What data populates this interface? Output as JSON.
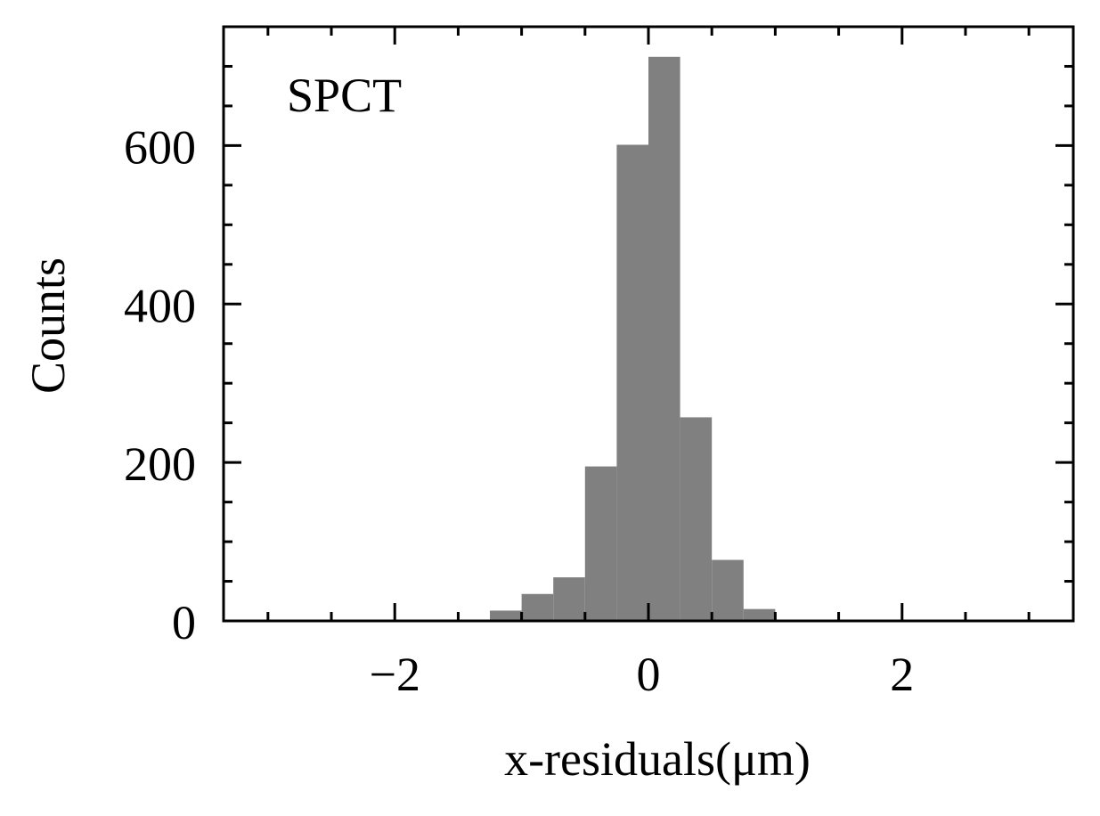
{
  "chart_data": {
    "type": "bar",
    "title": "",
    "annotation": "SPCT",
    "xlabel": "x-residuals(μm)",
    "ylabel": "Counts",
    "xlim": [
      -3.35,
      3.35
    ],
    "ylim": [
      0,
      750
    ],
    "xticks": [
      -2,
      0,
      2
    ],
    "xtick_labels": [
      "−2",
      "0",
      "2"
    ],
    "yticks": [
      0,
      200,
      400,
      600
    ],
    "ytick_labels": [
      "0",
      "200",
      "400",
      "600"
    ],
    "x_minor_step": 0.5,
    "y_minor_step": 50,
    "bin_width": 0.25,
    "bars": [
      {
        "x0": -2.25,
        "x1": -2.0,
        "count": 1
      },
      {
        "x0": -1.25,
        "x1": -1.0,
        "count": 13
      },
      {
        "x0": -1.0,
        "x1": -0.75,
        "count": 34
      },
      {
        "x0": -0.75,
        "x1": -0.5,
        "count": 55
      },
      {
        "x0": -0.5,
        "x1": -0.25,
        "count": 195
      },
      {
        "x0": -0.25,
        "x1": 0.0,
        "count": 601
      },
      {
        "x0": 0.0,
        "x1": 0.25,
        "count": 712
      },
      {
        "x0": 0.25,
        "x1": 0.5,
        "count": 257
      },
      {
        "x0": 0.5,
        "x1": 0.75,
        "count": 77
      },
      {
        "x0": 0.75,
        "x1": 1.0,
        "count": 15
      }
    ],
    "bar_color": "#808080",
    "grid": false,
    "legend": "none"
  }
}
